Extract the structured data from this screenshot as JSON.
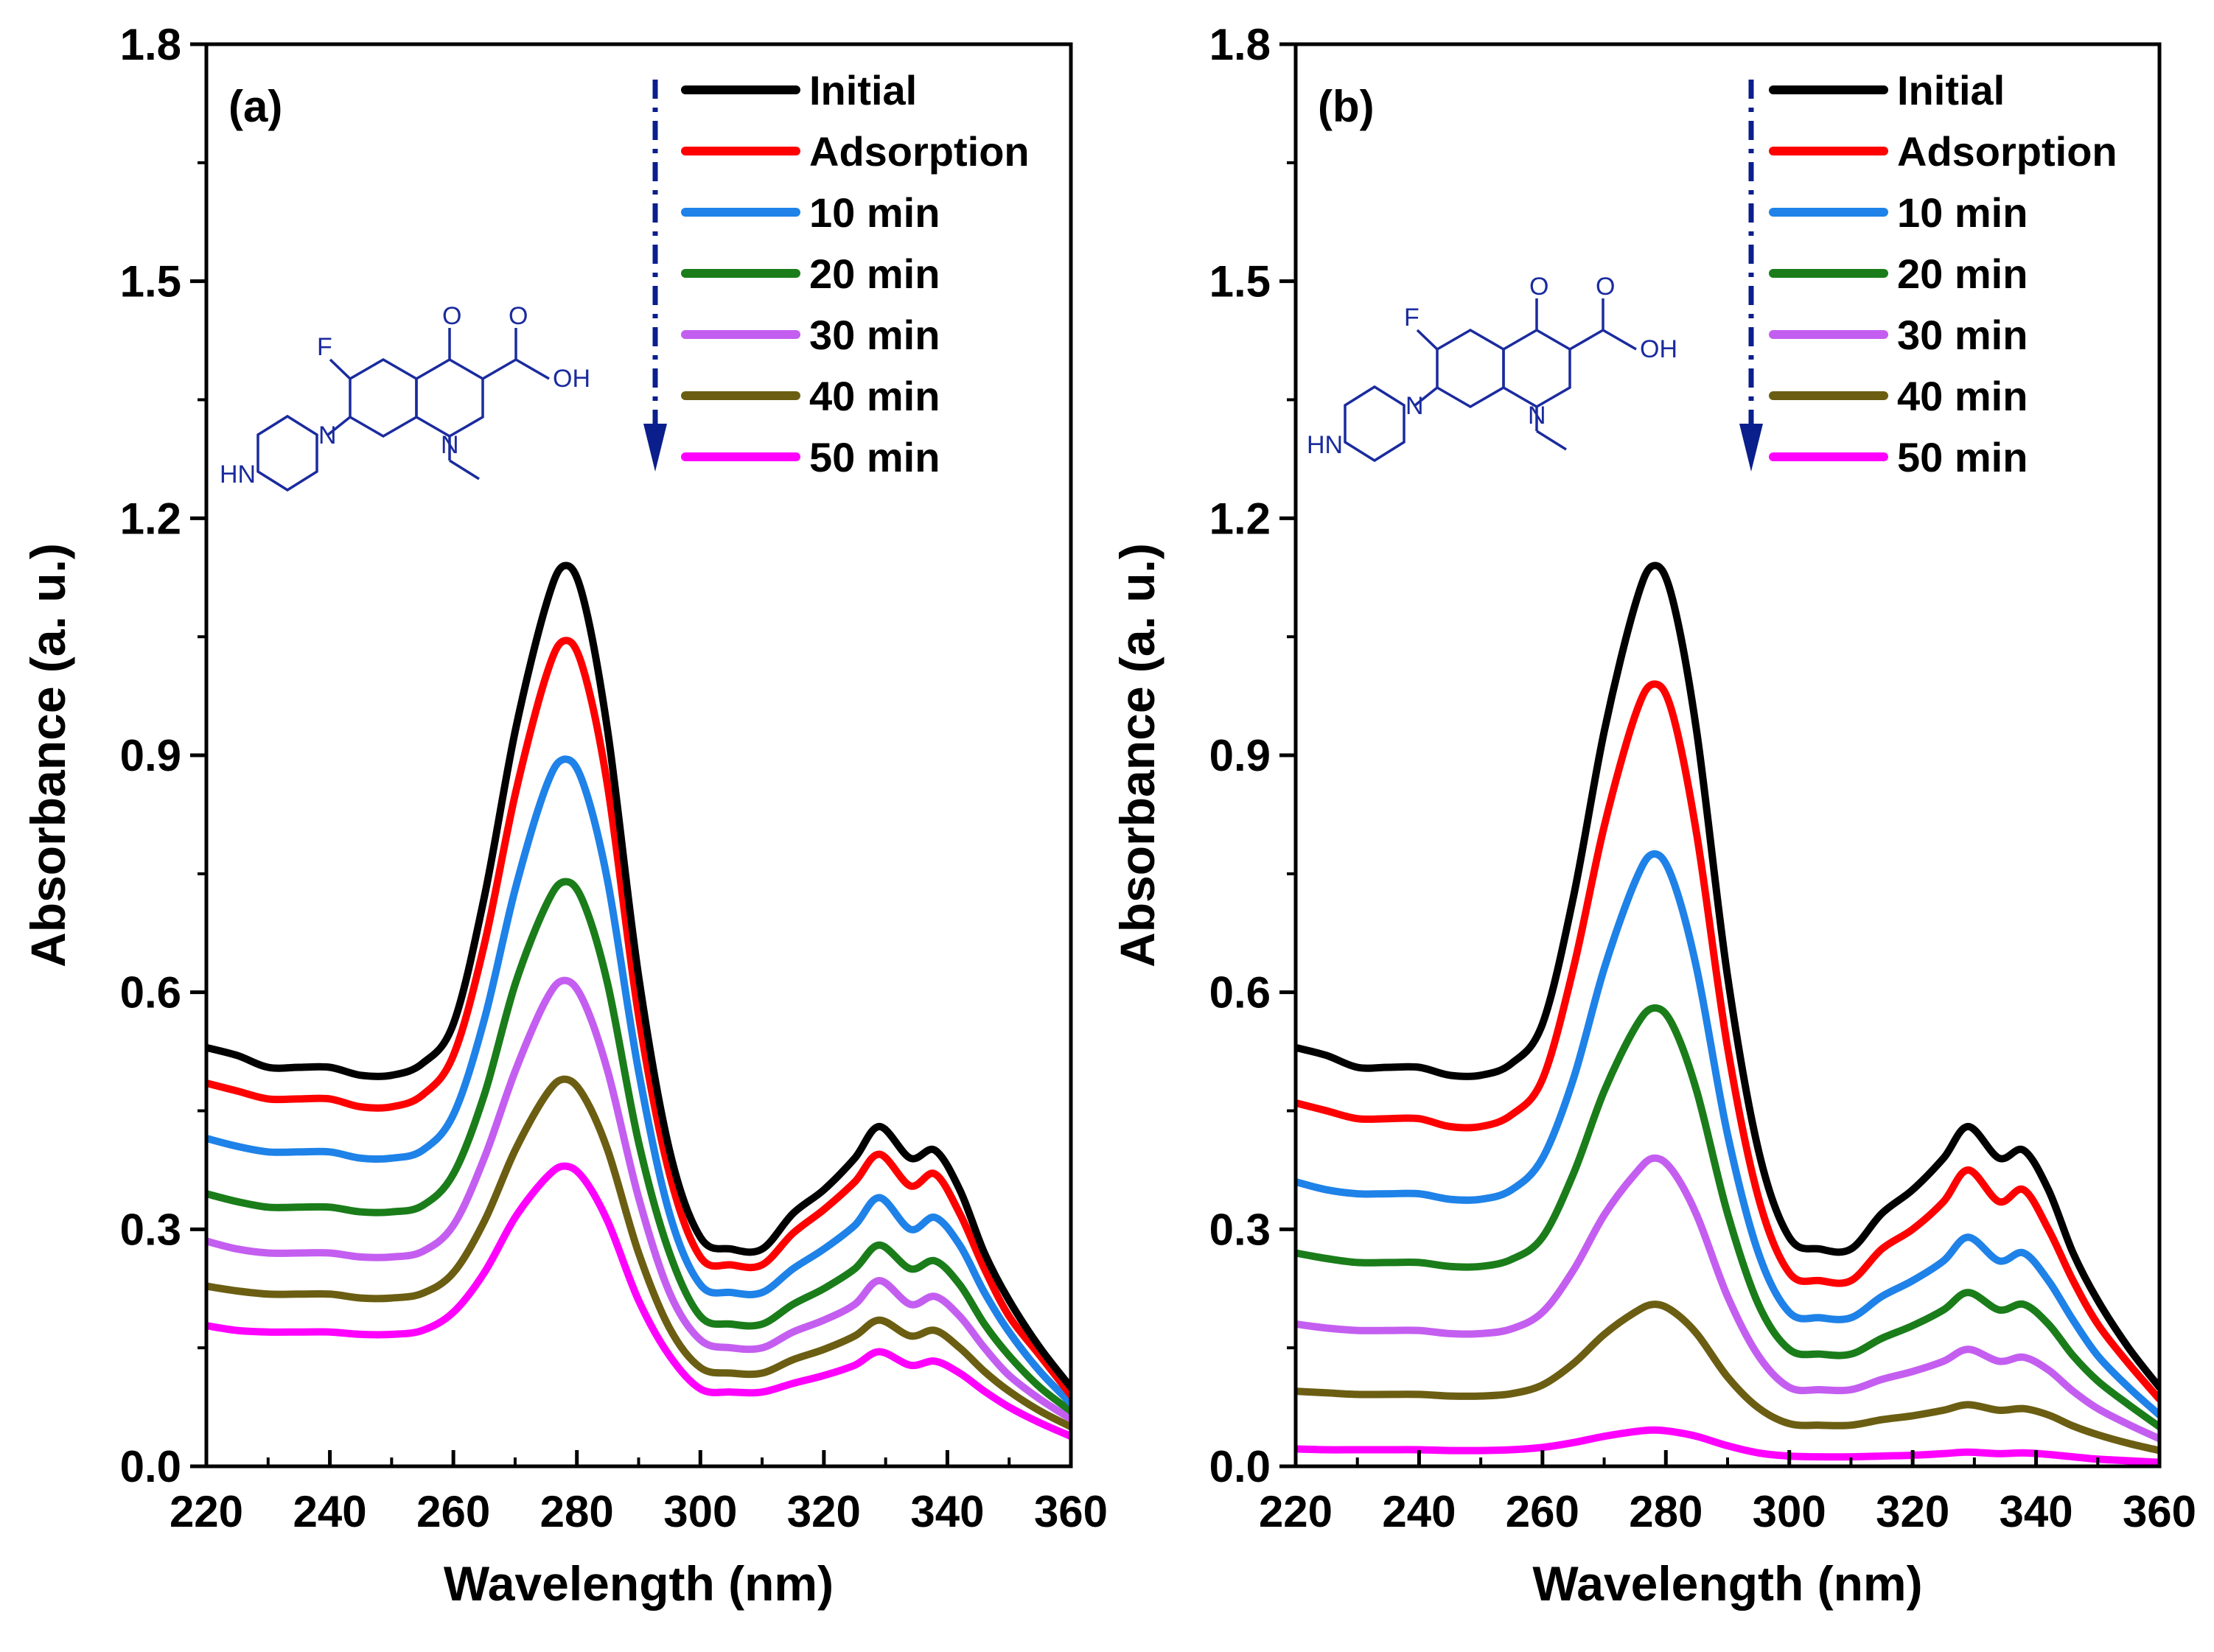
{
  "chart_data": [
    {
      "type": "line",
      "panel_label": "(a)",
      "xlabel": "Wavelength (nm)",
      "ylabel": "Absorbance (a. u.)",
      "xlim": [
        220,
        360
      ],
      "ylim": [
        0.0,
        1.8
      ],
      "xticks": [
        "220",
        "240",
        "260",
        "280",
        "300",
        "320",
        "340",
        "360"
      ],
      "yticks": [
        "0.0",
        "0.3",
        "0.6",
        "0.9",
        "1.2",
        "1.5",
        "1.8"
      ],
      "x": [
        220,
        225,
        230,
        235,
        240,
        245,
        250,
        255,
        260,
        265,
        270,
        275,
        278,
        281,
        285,
        290,
        295,
        300,
        305,
        310,
        315,
        320,
        325,
        329,
        334,
        338,
        342,
        346,
        350,
        355,
        360
      ],
      "series": [
        {
          "name": "Initial",
          "color": "#000000",
          "values": [
            0.53,
            0.52,
            0.505,
            0.505,
            0.505,
            0.495,
            0.495,
            0.51,
            0.56,
            0.72,
            0.93,
            1.09,
            1.14,
            1.1,
            0.93,
            0.62,
            0.4,
            0.29,
            0.275,
            0.275,
            0.32,
            0.35,
            0.39,
            0.43,
            0.39,
            0.4,
            0.35,
            0.27,
            0.21,
            0.15,
            0.1
          ]
        },
        {
          "name": "Adsorption",
          "color": "#ff0000",
          "values": [
            0.485,
            0.475,
            0.465,
            0.465,
            0.465,
            0.455,
            0.455,
            0.47,
            0.52,
            0.66,
            0.85,
            1.0,
            1.045,
            1.01,
            0.86,
            0.57,
            0.37,
            0.265,
            0.255,
            0.255,
            0.295,
            0.325,
            0.36,
            0.395,
            0.355,
            0.37,
            0.32,
            0.25,
            0.19,
            0.14,
            0.09
          ]
        },
        {
          "name": "10 min",
          "color": "#1e82e8",
          "values": [
            0.415,
            0.405,
            0.398,
            0.398,
            0.398,
            0.39,
            0.39,
            0.4,
            0.445,
            0.565,
            0.73,
            0.86,
            0.895,
            0.865,
            0.74,
            0.5,
            0.32,
            0.23,
            0.22,
            0.22,
            0.25,
            0.275,
            0.305,
            0.34,
            0.3,
            0.315,
            0.28,
            0.22,
            0.17,
            0.12,
            0.08
          ]
        },
        {
          "name": "20 min",
          "color": "#1a7d1a",
          "values": [
            0.345,
            0.335,
            0.328,
            0.328,
            0.328,
            0.322,
            0.322,
            0.33,
            0.37,
            0.47,
            0.61,
            0.71,
            0.74,
            0.715,
            0.61,
            0.41,
            0.27,
            0.19,
            0.18,
            0.18,
            0.205,
            0.225,
            0.25,
            0.28,
            0.25,
            0.26,
            0.23,
            0.18,
            0.14,
            0.1,
            0.07
          ]
        },
        {
          "name": "30 min",
          "color": "#c45ef0",
          "values": [
            0.285,
            0.275,
            0.27,
            0.27,
            0.27,
            0.265,
            0.265,
            0.272,
            0.305,
            0.39,
            0.5,
            0.59,
            0.615,
            0.59,
            0.5,
            0.34,
            0.22,
            0.16,
            0.15,
            0.15,
            0.17,
            0.185,
            0.205,
            0.235,
            0.205,
            0.215,
            0.19,
            0.15,
            0.115,
            0.085,
            0.06
          ]
        },
        {
          "name": "40 min",
          "color": "#6b5e12",
          "values": [
            0.228,
            0.222,
            0.218,
            0.218,
            0.218,
            0.213,
            0.213,
            0.219,
            0.245,
            0.31,
            0.4,
            0.47,
            0.49,
            0.47,
            0.4,
            0.27,
            0.175,
            0.125,
            0.118,
            0.118,
            0.135,
            0.148,
            0.165,
            0.185,
            0.165,
            0.172,
            0.15,
            0.12,
            0.095,
            0.07,
            0.05
          ]
        },
        {
          "name": "50 min",
          "color": "#ff00ff",
          "values": [
            0.178,
            0.172,
            0.17,
            0.17,
            0.17,
            0.167,
            0.167,
            0.172,
            0.195,
            0.245,
            0.315,
            0.365,
            0.38,
            0.365,
            0.31,
            0.21,
            0.14,
            0.098,
            0.094,
            0.094,
            0.105,
            0.115,
            0.128,
            0.145,
            0.128,
            0.133,
            0.118,
            0.095,
            0.075,
            0.055,
            0.038
          ]
        }
      ]
    },
    {
      "type": "line",
      "panel_label": "(b)",
      "xlabel": "Wavelength (nm)",
      "ylabel": "Absorbance (a. u.)",
      "xlim": [
        220,
        360
      ],
      "ylim": [
        0.0,
        1.8
      ],
      "xticks": [
        "220",
        "240",
        "260",
        "280",
        "300",
        "320",
        "340",
        "360"
      ],
      "yticks": [
        "0.0",
        "0.3",
        "0.6",
        "0.9",
        "1.2",
        "1.5",
        "1.8"
      ],
      "x": [
        220,
        225,
        230,
        235,
        240,
        245,
        250,
        255,
        260,
        265,
        270,
        275,
        278,
        281,
        285,
        290,
        295,
        300,
        305,
        310,
        315,
        320,
        325,
        329,
        334,
        338,
        342,
        346,
        350,
        355,
        360
      ],
      "series": [
        {
          "name": "Initial",
          "color": "#000000",
          "values": [
            0.53,
            0.52,
            0.505,
            0.505,
            0.505,
            0.495,
            0.495,
            0.51,
            0.56,
            0.72,
            0.93,
            1.09,
            1.14,
            1.1,
            0.93,
            0.62,
            0.4,
            0.29,
            0.275,
            0.275,
            0.32,
            0.35,
            0.39,
            0.43,
            0.39,
            0.4,
            0.35,
            0.27,
            0.21,
            0.15,
            0.1
          ]
        },
        {
          "name": "Adsorption",
          "color": "#ff0000",
          "values": [
            0.46,
            0.45,
            0.44,
            0.44,
            0.44,
            0.43,
            0.43,
            0.445,
            0.49,
            0.63,
            0.81,
            0.95,
            0.99,
            0.955,
            0.8,
            0.53,
            0.34,
            0.245,
            0.235,
            0.235,
            0.275,
            0.3,
            0.335,
            0.375,
            0.335,
            0.35,
            0.3,
            0.235,
            0.18,
            0.13,
            0.085
          ]
        },
        {
          "name": "10 min",
          "color": "#1e82e8",
          "values": [
            0.36,
            0.35,
            0.345,
            0.345,
            0.345,
            0.338,
            0.338,
            0.35,
            0.39,
            0.49,
            0.63,
            0.74,
            0.775,
            0.745,
            0.63,
            0.42,
            0.27,
            0.195,
            0.188,
            0.188,
            0.215,
            0.235,
            0.26,
            0.29,
            0.26,
            0.27,
            0.235,
            0.185,
            0.14,
            0.1,
            0.065
          ]
        },
        {
          "name": "20 min",
          "color": "#1a7d1a",
          "values": [
            0.27,
            0.263,
            0.258,
            0.258,
            0.258,
            0.253,
            0.253,
            0.262,
            0.29,
            0.37,
            0.475,
            0.555,
            0.58,
            0.56,
            0.475,
            0.32,
            0.205,
            0.148,
            0.142,
            0.142,
            0.162,
            0.178,
            0.198,
            0.22,
            0.198,
            0.205,
            0.18,
            0.14,
            0.108,
            0.078,
            0.05
          ]
        },
        {
          "name": "30 min",
          "color": "#c45ef0",
          "values": [
            0.18,
            0.175,
            0.172,
            0.172,
            0.172,
            0.168,
            0.168,
            0.174,
            0.195,
            0.248,
            0.318,
            0.37,
            0.39,
            0.375,
            0.318,
            0.215,
            0.14,
            0.1,
            0.097,
            0.097,
            0.11,
            0.12,
            0.133,
            0.148,
            0.133,
            0.138,
            0.122,
            0.095,
            0.073,
            0.053,
            0.035
          ]
        },
        {
          "name": "40 min",
          "color": "#6b5e12",
          "values": [
            0.095,
            0.093,
            0.091,
            0.091,
            0.091,
            0.089,
            0.089,
            0.092,
            0.103,
            0.13,
            0.167,
            0.195,
            0.205,
            0.197,
            0.168,
            0.113,
            0.074,
            0.054,
            0.052,
            0.052,
            0.059,
            0.064,
            0.071,
            0.078,
            0.071,
            0.073,
            0.065,
            0.051,
            0.04,
            0.029,
            0.02
          ]
        },
        {
          "name": "50 min",
          "color": "#ff00ff",
          "values": [
            0.022,
            0.021,
            0.021,
            0.021,
            0.021,
            0.02,
            0.02,
            0.021,
            0.024,
            0.03,
            0.038,
            0.044,
            0.046,
            0.044,
            0.038,
            0.026,
            0.017,
            0.013,
            0.012,
            0.012,
            0.013,
            0.014,
            0.016,
            0.018,
            0.016,
            0.017,
            0.015,
            0.012,
            0.009,
            0.007,
            0.005
          ]
        }
      ]
    }
  ],
  "molecule_labels": {
    "fluorine": "F",
    "oxo": "O",
    "acid_oxygen": "O",
    "hydroxyl": "OH",
    "quinoline_nitrogen": "N",
    "piperazine_nitrogen": "N",
    "piperazine_nh": "HN"
  }
}
